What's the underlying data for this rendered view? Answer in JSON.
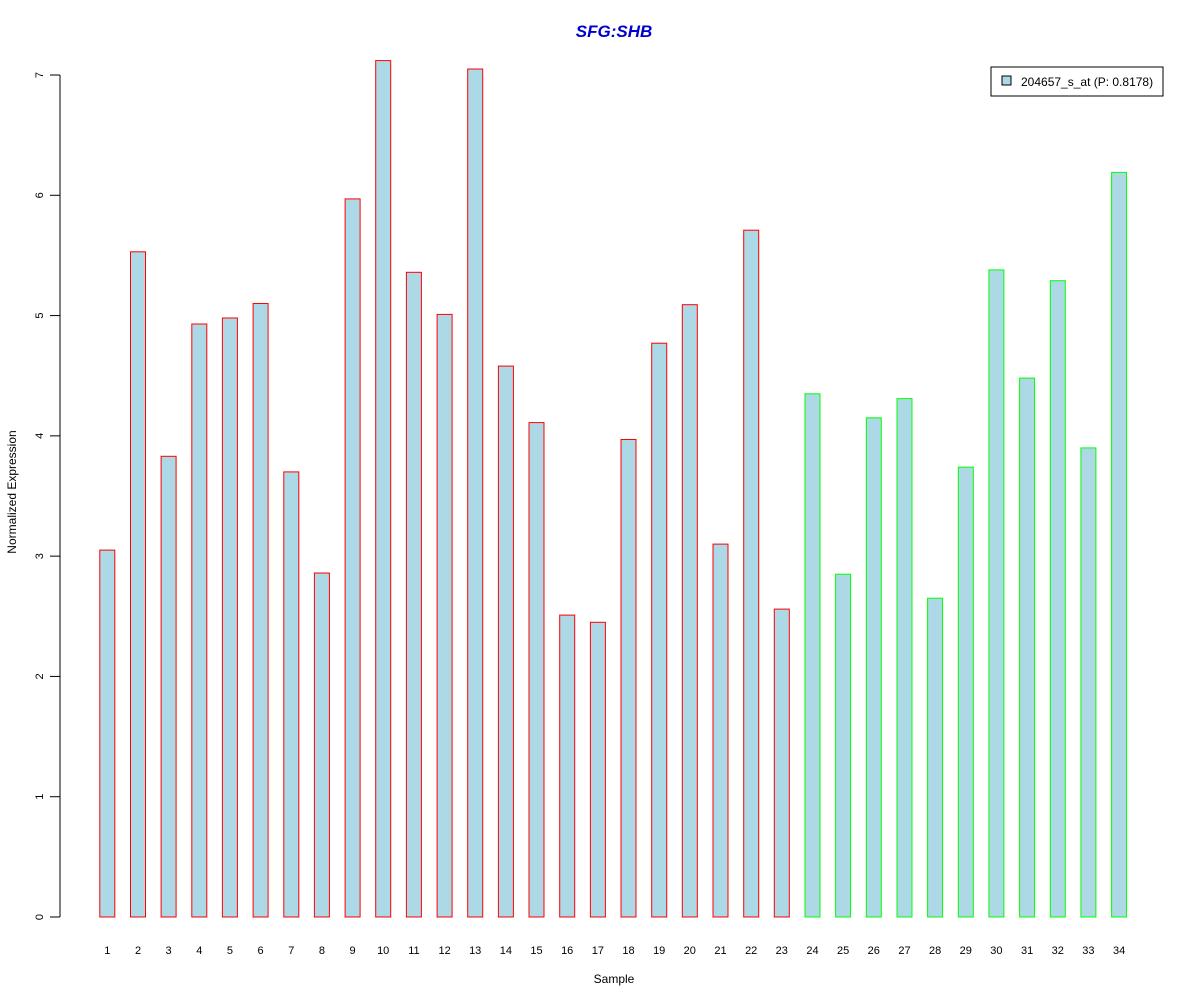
{
  "colors": {
    "bar_fill": "#add8e6",
    "group1_border": "#ff0000",
    "group2_border": "#00ff00",
    "title": "#0000cd",
    "axis": "#000000"
  },
  "chart_data": {
    "type": "bar",
    "title": "SFG:SHB",
    "xlabel": "Sample",
    "ylabel": "Normalized Expression",
    "ylim": [
      0,
      7
    ],
    "yticks": [
      0,
      1,
      2,
      3,
      4,
      5,
      6,
      7
    ],
    "grid": false,
    "legend_position": "top-right",
    "legend": [
      {
        "label": "204657_s_at (P: 0.8178)"
      }
    ],
    "categories": [
      "1",
      "2",
      "3",
      "4",
      "5",
      "6",
      "7",
      "8",
      "9",
      "10",
      "11",
      "12",
      "13",
      "14",
      "15",
      "16",
      "17",
      "18",
      "19",
      "20",
      "21",
      "22",
      "23",
      "24",
      "25",
      "26",
      "27",
      "28",
      "29",
      "30",
      "31",
      "32",
      "33",
      "34"
    ],
    "series": [
      {
        "name": "204657_s_at (P: 0.8178)",
        "values": [
          3.05,
          5.53,
          3.83,
          4.93,
          4.98,
          5.1,
          3.7,
          2.86,
          5.97,
          7.12,
          5.36,
          5.01,
          7.05,
          4.58,
          4.11,
          2.51,
          2.45,
          3.97,
          4.77,
          5.09,
          3.1,
          5.71,
          2.56,
          4.35,
          2.85,
          4.15,
          4.31,
          2.65,
          3.74,
          5.38,
          4.48,
          5.29,
          3.9,
          6.19
        ],
        "border_group": [
          1,
          1,
          1,
          1,
          1,
          1,
          1,
          1,
          1,
          1,
          1,
          1,
          1,
          1,
          1,
          1,
          1,
          1,
          1,
          1,
          1,
          1,
          1,
          2,
          2,
          2,
          2,
          2,
          2,
          2,
          2,
          2,
          2,
          2
        ]
      }
    ]
  }
}
